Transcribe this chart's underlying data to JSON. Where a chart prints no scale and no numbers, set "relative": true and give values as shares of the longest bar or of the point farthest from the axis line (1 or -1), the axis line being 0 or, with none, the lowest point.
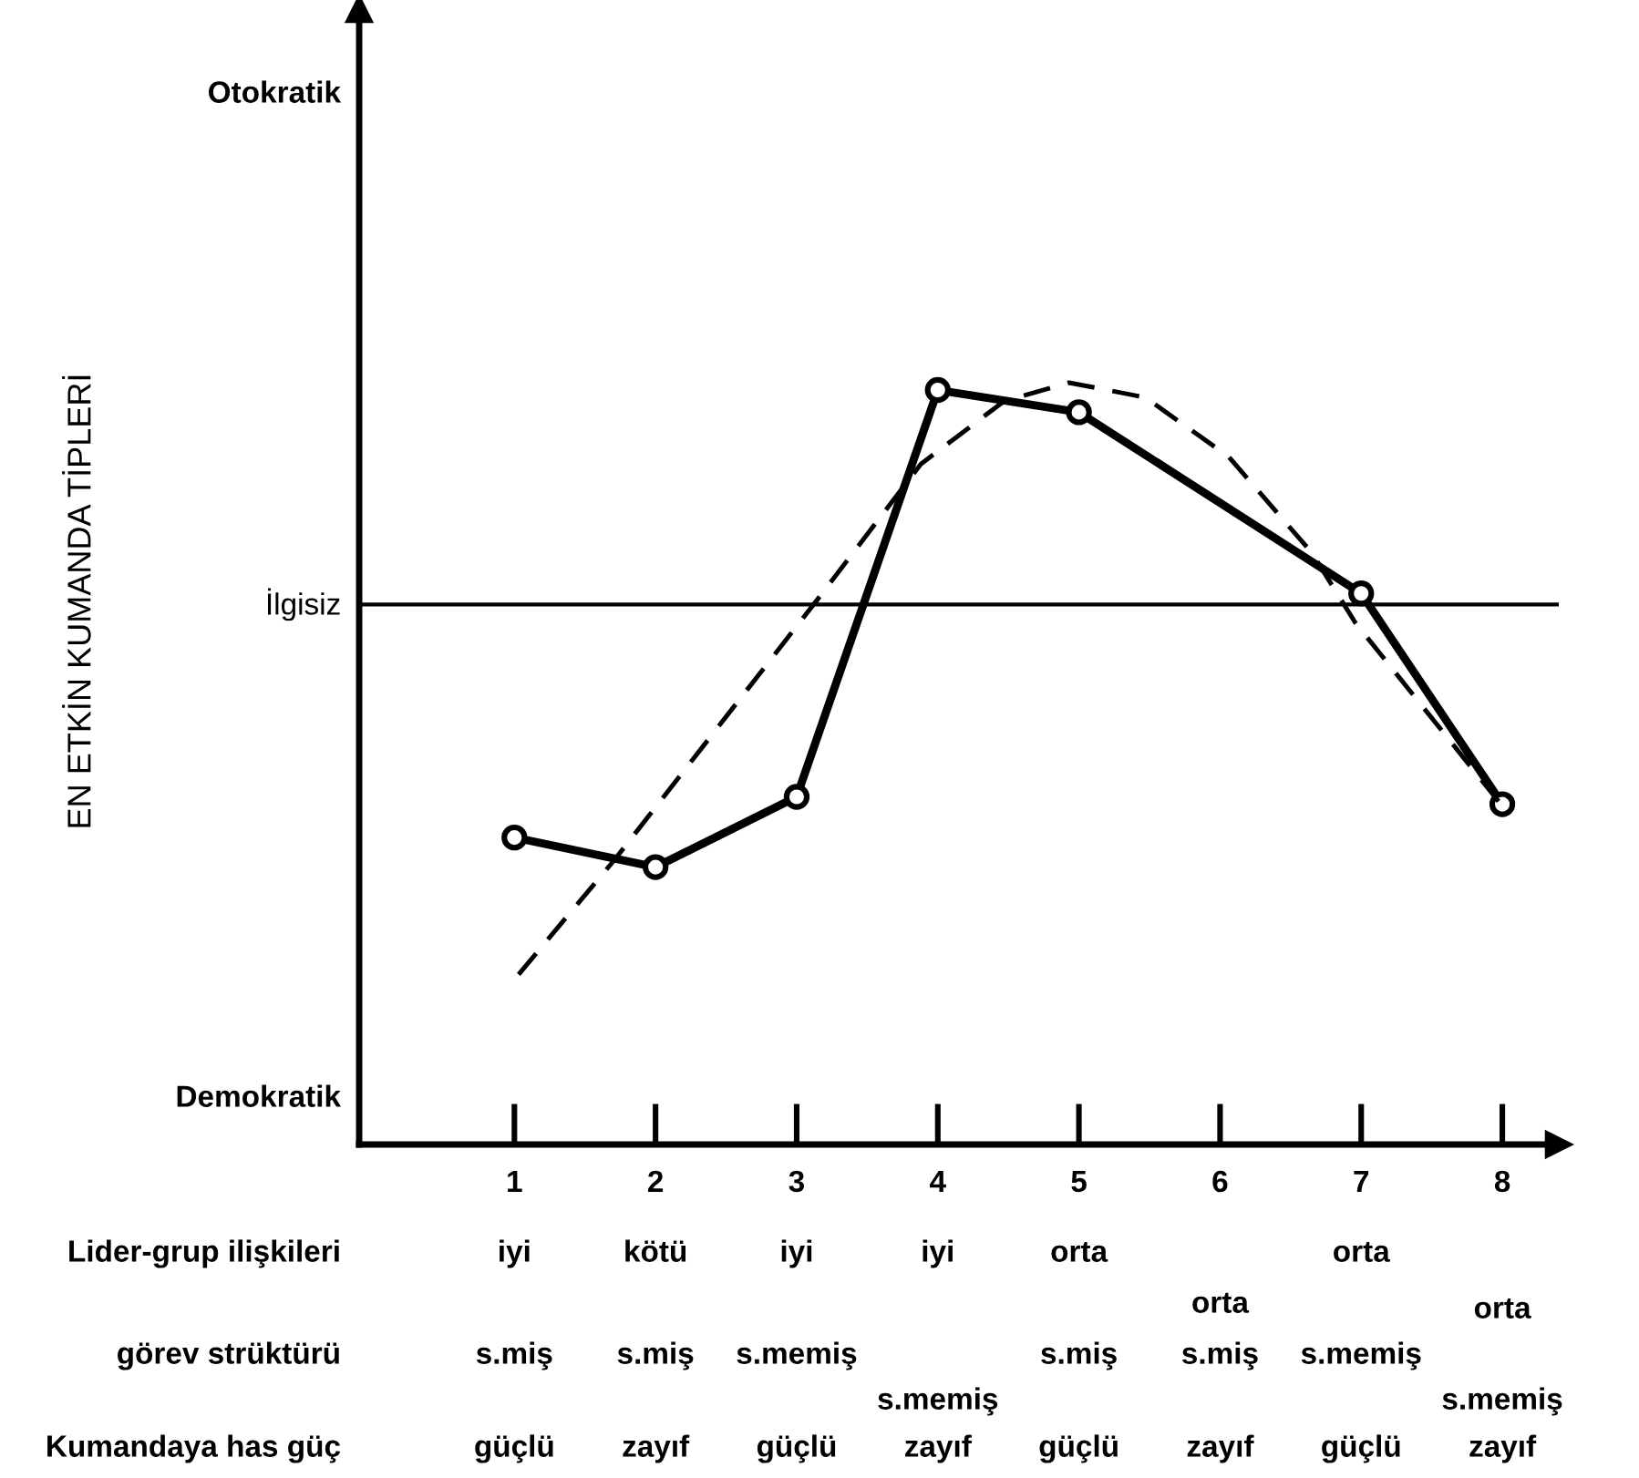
{
  "chart_data": {
    "type": "line",
    "relative": true,
    "xlim": [
      -0.1,
      8.4
    ],
    "xticks": [
      1,
      2,
      3,
      4,
      5,
      6,
      7,
      8
    ],
    "marker": "circle",
    "series": [
      {
        "color": "#000000",
        "x": [
          1,
          2,
          3,
          4,
          5,
          7,
          8
        ],
        "values": [
          -0.63,
          -0.71,
          -0.52,
          0.58,
          0.52,
          0.03,
          -0.54
        ]
      },
      {
        "color": "#000000",
        "type": "line",
        "line_style": "dashed",
        "marker": "none",
        "x": [
          1.03,
          1.71,
          3.14,
          3.88,
          4.47,
          4.93,
          5.47,
          6.06,
          6.65,
          6.96,
          7.99
        ],
        "values": [
          -1,
          -0.69,
          0.01,
          0.38,
          0.55,
          0.6,
          0.56,
          0.4,
          0.14,
          -0.05,
          -0.54
        ]
      }
    ],
    "ref_lines": [
      {
        "axis": "y",
        "value": 0,
        "label": "İlgisiz",
        "color": "#000000"
      }
    ],
    "annotations": [
      "EN ETKİN KUMANDA TİPLERİ",
      "Otokratik",
      "Demokratik",
      "Lider-grup ilişkileri",
      "görev strüktürü",
      "Kumandaya has güç",
      "iyi",
      "s.miş",
      "güçlü",
      "kötü",
      "s.miş",
      "zayıf",
      "iyi",
      "s.memiş",
      "güçlü",
      "iyi",
      "s.memiş",
      "zayıf",
      "orta",
      "s.miş",
      "güçlü",
      "orta",
      "s.miş",
      "zayıf",
      "orta",
      "s.memiş",
      "güçlü",
      "orta",
      "s.memiş",
      "zayıf"
    ]
  }
}
